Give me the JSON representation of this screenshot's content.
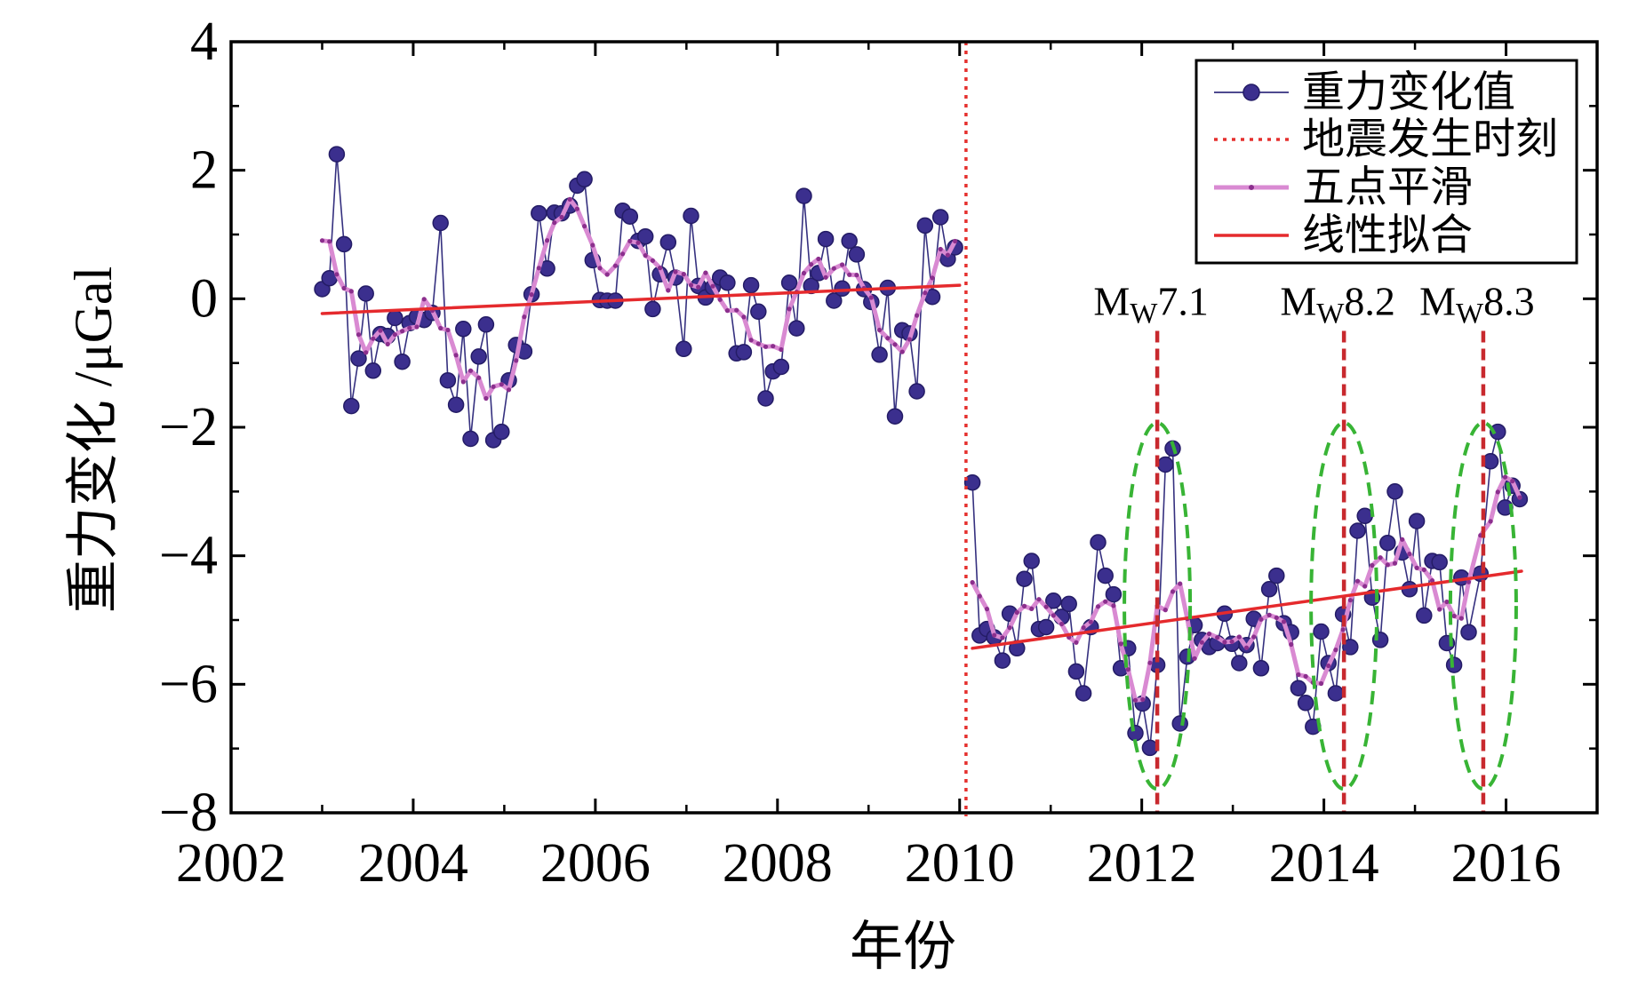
{
  "chart_data": {
    "type": "line",
    "title": "",
    "xlabel": "年份",
    "ylabel": "重力变化 /μGal",
    "xlim": [
      2002,
      2017
    ],
    "ylim": [
      -8,
      4
    ],
    "xticks": [
      {
        "value": 2002,
        "label": "2002"
      },
      {
        "value": 2004,
        "label": "2004"
      },
      {
        "value": 2006,
        "label": "2006"
      },
      {
        "value": 2008,
        "label": "2008"
      },
      {
        "value": 2010,
        "label": "2010"
      },
      {
        "value": 2012,
        "label": "2012"
      },
      {
        "value": 2014,
        "label": "2014"
      },
      {
        "value": 2016,
        "label": "2016"
      }
    ],
    "yticks": [
      {
        "value": 4,
        "label": "4"
      },
      {
        "value": 2,
        "label": "2"
      },
      {
        "value": 0,
        "label": "0"
      },
      {
        "value": -2,
        "label": "−2"
      },
      {
        "value": -4,
        "label": "−4"
      },
      {
        "value": -6,
        "label": "−6"
      },
      {
        "value": -8,
        "label": "−8"
      }
    ],
    "grid": false,
    "series": [
      {
        "name": "重力变化值",
        "color": "#35307f",
        "segments": [
          {
            "x": [
              2003.0,
              2003.08,
              2003.16,
              2003.24,
              2003.32,
              2003.4,
              2003.48,
              2003.56,
              2003.64,
              2003.72,
              2003.8,
              2003.88,
              2003.96,
              2004.04,
              2004.12,
              2004.21,
              2004.3,
              2004.38,
              2004.47,
              2004.55,
              2004.63,
              2004.72,
              2004.8,
              2004.88,
              2004.97,
              2005.05,
              2005.13,
              2005.22,
              2005.3,
              2005.38,
              2005.47,
              2005.55,
              2005.63,
              2005.72,
              2005.8,
              2005.88,
              2005.97,
              2006.05,
              2006.13,
              2006.22,
              2006.3,
              2006.38,
              2006.47,
              2006.55,
              2006.63,
              2006.71,
              2006.8,
              2006.88,
              2006.97,
              2007.05,
              2007.13,
              2007.21,
              2007.29,
              2007.37,
              2007.45,
              2007.55,
              2007.63,
              2007.71,
              2007.79,
              2007.87,
              2007.95,
              2008.04,
              2008.13,
              2008.21,
              2008.29,
              2008.37,
              2008.45,
              2008.53,
              2008.62,
              2008.71,
              2008.79,
              2008.87,
              2008.95,
              2009.03,
              2009.12,
              2009.21,
              2009.29,
              2009.37,
              2009.45,
              2009.53,
              2009.62,
              2009.7,
              2009.79,
              2009.87,
              2009.95
            ],
            "y": [
              0.15,
              0.32,
              2.25,
              0.85,
              -1.67,
              -0.93,
              0.08,
              -1.12,
              -0.55,
              -0.58,
              -0.3,
              -0.98,
              -0.38,
              -0.28,
              -0.33,
              -0.22,
              1.18,
              -1.27,
              -1.65,
              -0.47,
              -2.18,
              -0.9,
              -0.4,
              -2.2,
              -2.07,
              -1.27,
              -0.72,
              -0.82,
              0.07,
              1.33,
              0.47,
              1.34,
              1.33,
              1.45,
              1.76,
              1.86,
              0.6,
              -0.02,
              -0.03,
              -0.03,
              1.37,
              1.28,
              0.9,
              0.97,
              -0.16,
              0.38,
              0.88,
              0.33,
              -0.78,
              1.29,
              0.2,
              0.02,
              0.18,
              0.33,
              0.25,
              -0.85,
              -0.83,
              0.21,
              -0.2,
              -1.55,
              -1.13,
              -1.06,
              0.25,
              -0.46,
              1.6,
              0.2,
              0.4,
              0.93,
              -0.03,
              0.16,
              0.9,
              0.69,
              0.15,
              -0.05,
              -0.87,
              0.17,
              -1.83,
              -0.49,
              -0.54,
              -1.44,
              1.14,
              0.03,
              1.27,
              0.62,
              0.8
            ]
          },
          {
            "x": [
              2010.14,
              2010.22,
              2010.3,
              2010.38,
              2010.47,
              2010.55,
              2010.63,
              2010.71,
              2010.79,
              2010.87,
              2010.95,
              2011.03,
              2011.12,
              2011.2,
              2011.28,
              2011.36,
              2011.44,
              2011.52,
              2011.6,
              2011.69,
              2011.77,
              2011.85,
              2011.93,
              2012.01,
              2012.09,
              2012.17,
              2012.26,
              2012.34,
              2012.42,
              2012.5,
              2012.58,
              2012.66,
              2012.74,
              2012.83,
              2012.91,
              2012.99,
              2013.07,
              2013.15,
              2013.23,
              2013.31,
              2013.4,
              2013.48,
              2013.56,
              2013.64,
              2013.72,
              2013.8,
              2013.88,
              2013.97,
              2014.05,
              2014.13,
              2014.21,
              2014.29,
              2014.37,
              2014.45,
              2014.53,
              2014.62,
              2014.7,
              2014.78,
              2014.86,
              2014.94,
              2015.02,
              2015.1,
              2015.19,
              2015.27,
              2015.35,
              2015.43,
              2015.51,
              2015.59,
              2015.72,
              2015.83,
              2015.91,
              2015.99,
              2016.07,
              2016.15
            ],
            "y": [
              -2.86,
              -5.24,
              -5.14,
              -5.27,
              -5.63,
              -4.9,
              -5.44,
              -4.36,
              -4.08,
              -5.14,
              -5.11,
              -4.7,
              -4.95,
              -4.75,
              -5.8,
              -6.14,
              -5.11,
              -3.79,
              -4.31,
              -4.6,
              -5.75,
              -5.44,
              -6.76,
              -6.3,
              -6.99,
              -5.7,
              -2.58,
              -2.33,
              -6.61,
              -5.57,
              -5.08,
              -5.31,
              -5.42,
              -5.36,
              -4.9,
              -5.37,
              -5.67,
              -5.39,
              -4.98,
              -5.75,
              -4.52,
              -4.31,
              -5.05,
              -5.19,
              -6.06,
              -6.29,
              -6.66,
              -5.18,
              -5.67,
              -6.14,
              -4.91,
              -5.42,
              -3.61,
              -3.38,
              -4.65,
              -5.31,
              -3.8,
              -3.0,
              -3.95,
              -4.52,
              -3.46,
              -4.93,
              -4.08,
              -4.1,
              -5.36,
              -5.7,
              -4.34,
              -5.19,
              -4.28,
              -2.53,
              -2.07,
              -3.25,
              -2.91,
              -3.12
            ]
          }
        ]
      },
      {
        "name": "五点平滑",
        "color": "#d98ad2",
        "dot_color": "#8b2f8d",
        "window": 5
      },
      {
        "name": "线性拟合",
        "color": "#e52a2d",
        "segments": [
          {
            "x": [
              2003.0,
              2010.0
            ],
            "y": [
              -0.23,
              0.21
            ]
          },
          {
            "x": [
              2010.14,
              2016.17
            ],
            "y": [
              -5.44,
              -4.24
            ]
          }
        ]
      }
    ],
    "event": {
      "name": "地震发生时刻",
      "x": 2010.07,
      "color": "#e5302e"
    },
    "earthquakes": [
      {
        "prefix": "M",
        "sub": "W",
        "magnitude": "7.1",
        "x": 2012.17
      },
      {
        "prefix": "M",
        "sub": "W",
        "magnitude": "8.2",
        "x": 2014.22
      },
      {
        "prefix": "M",
        "sub": "W",
        "magnitude": "8.3",
        "x": 2015.75
      }
    ],
    "earthquake_line_color": "#c8292e",
    "highlight_color": "#38b435",
    "legend": {
      "position": "top-right"
    }
  }
}
